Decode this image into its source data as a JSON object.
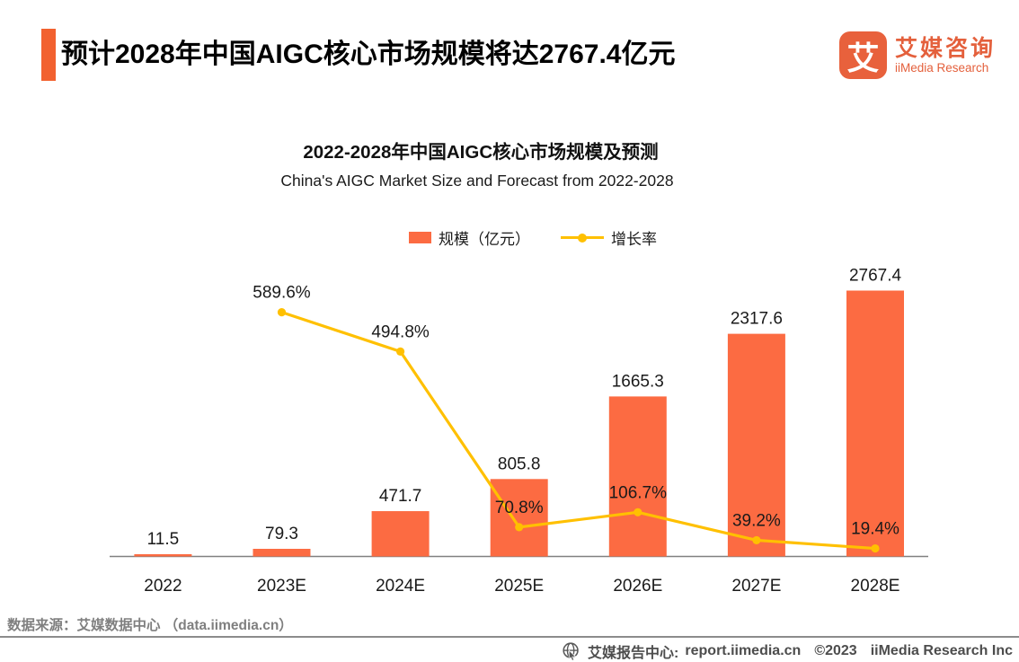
{
  "header": {
    "title": "预计2028年中国AIGC核心市场规模将达2767.4亿元",
    "logo": {
      "mark": "艾",
      "name_cn": "艾媒咨询",
      "name_en": "iiMedia Research"
    }
  },
  "chart": {
    "title_cn": "2022-2028年中国AIGC核心市场规模及预测",
    "title_en": "China's AIGC Market Size and Forecast from 2022-2028",
    "legend": {
      "bars": "规模（亿元）",
      "line": "增长率"
    }
  },
  "chart_data": {
    "type": "bar",
    "title": "2022-2028年中国AIGC核心市场规模及预测",
    "subtitle": "China's AIGC Market Size and Forecast from 2022-2028",
    "categories": [
      "2022",
      "2023E",
      "2024E",
      "2025E",
      "2026E",
      "2027E",
      "2028E"
    ],
    "series": [
      {
        "name": "规模（亿元）",
        "type": "bar",
        "unit": "亿元",
        "color": "#FC6B42",
        "values": [
          11.5,
          79.3,
          471.7,
          805.8,
          1665.3,
          2317.6,
          2767.4
        ]
      },
      {
        "name": "增长率",
        "type": "line",
        "unit": "%",
        "color": "#FFC000",
        "values": [
          null,
          589.6,
          494.8,
          70.8,
          106.7,
          39.2,
          19.4
        ]
      }
    ],
    "xlabel": "",
    "ylabel": "",
    "ylim": [
      0,
      2800
    ],
    "y2lim": [
      0,
      732
    ],
    "grid": false,
    "legend_position": "top",
    "value_labels": true
  },
  "footer": {
    "source": "数据来源：艾媒数据中心 （data.iimedia.cn）",
    "report_label": "艾媒报告中心:",
    "report_url": "report.iimedia.cn",
    "copyright": "©2023",
    "company": "iiMedia Research Inc"
  },
  "colors": {
    "bar": "#FC6B42",
    "line": "#FFC000",
    "accent": "#F2612F",
    "logo": "#E8613C",
    "axis": "#808080",
    "label_text": "#1A1A1A",
    "source_text": "#7F7F7F",
    "footer_text": "#4D4D4D"
  }
}
